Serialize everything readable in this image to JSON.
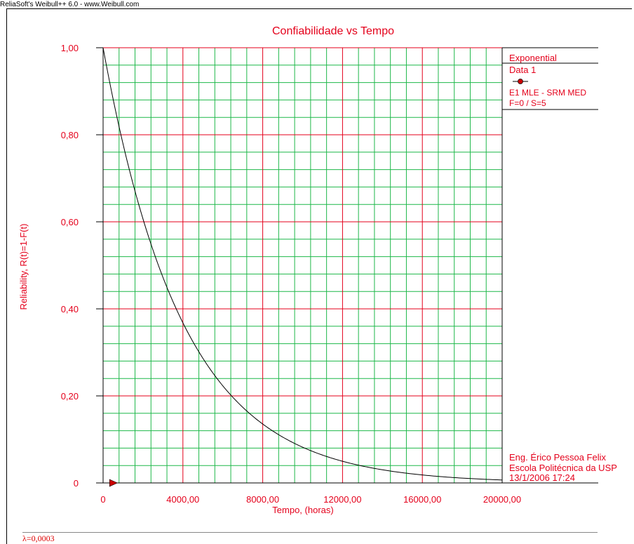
{
  "app": {
    "title": "ReliaSoft's Weibull++ 6.0 - www.Weibull.com"
  },
  "chart_data": {
    "type": "line",
    "title": "Confiabilidade vs Tempo",
    "xlabel": "Tempo, (horas)",
    "ylabel": "Reliability, R(t)=1-F(t)",
    "xlim": [
      0,
      20000
    ],
    "ylim": [
      0,
      1
    ],
    "x_ticks": [
      "0",
      "4000,00",
      "8000,00",
      "12000,00",
      "16000,00",
      "20000,00"
    ],
    "y_ticks": [
      "0",
      "0,20",
      "0,40",
      "0,60",
      "0,80",
      "1,00"
    ],
    "grid": true,
    "series": [
      {
        "model": "exponential",
        "lambda": 0.00025,
        "x": [
          0,
          1000,
          2000,
          3000,
          4000,
          6000,
          8000,
          10000,
          12000,
          14000,
          16000,
          18000,
          20000
        ],
        "values": [
          1.0,
          0.78,
          0.61,
          0.47,
          0.37,
          0.22,
          0.135,
          0.082,
          0.05,
          0.03,
          0.018,
          0.011,
          0.007
        ],
        "color": "#000000"
      }
    ],
    "suspension_marker": {
      "x": 500,
      "y": 0,
      "color": "#cc0000"
    },
    "legend": {
      "position": "right",
      "model": "Exponential",
      "data_name": "Data 1",
      "method": "E1 MLE - SRM MED",
      "counts": "F=0 / S=5"
    },
    "footer": {
      "author": "Eng. Érico Pessoa Felix",
      "institution": "Escola Politécnica da USP",
      "date": "13/1/2006 17:24"
    },
    "stats": "λ=0,0003",
    "colors": {
      "major_grid": "#e4001b",
      "minor_grid": "#1fb84a",
      "text": "#e4001b"
    }
  }
}
